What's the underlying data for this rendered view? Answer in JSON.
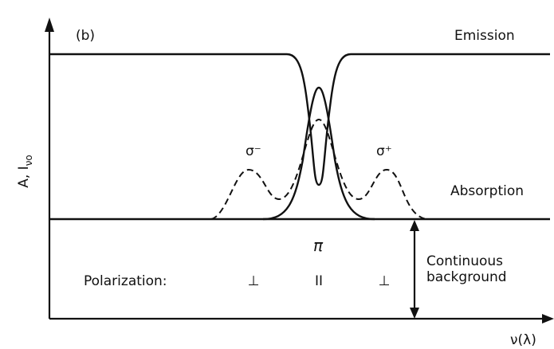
{
  "panel_label": "(b)",
  "axes": {
    "y_label": "A, I",
    "y_label_subscript": "νo",
    "x_label": "ν(λ)"
  },
  "curves": {
    "emission": "Emission",
    "absorption": "Absorption"
  },
  "components": {
    "sigma_minus": "σ⁻",
    "pi": "π",
    "sigma_plus": "σ⁺"
  },
  "polarization": {
    "label": "Polarization:",
    "marks": [
      "⊥",
      "II",
      "⊥"
    ]
  },
  "background": {
    "lines": [
      "Continuous",
      "background"
    ]
  }
}
